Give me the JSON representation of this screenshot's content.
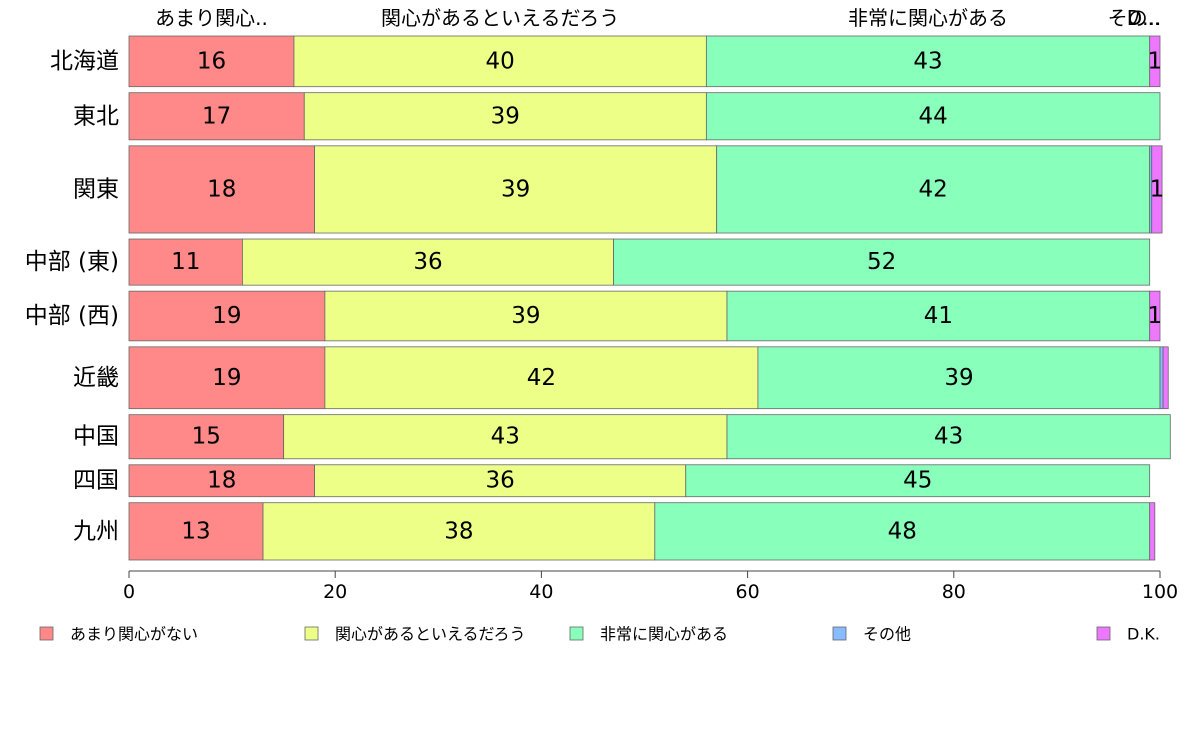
{
  "chart_data": {
    "type": "bar",
    "orientation": "horizontal",
    "stacked": true,
    "categories": [
      "北海道",
      "東北",
      "関東",
      "中部 (東)",
      "中部 (西)",
      "近畿",
      "中国",
      "四国",
      "九州"
    ],
    "bar_weights": [
      1.0,
      0.93,
      1.72,
      0.91,
      0.98,
      1.22,
      0.87,
      0.63,
      1.13
    ],
    "series": [
      {
        "name": "あまり関心がない",
        "color": "#ff8888",
        "values": [
          16,
          17,
          18,
          11,
          19,
          19,
          15,
          18,
          13
        ]
      },
      {
        "name": "関心があるといえるだろう",
        "color": "#eeff88",
        "values": [
          40,
          39,
          39,
          36,
          39,
          42,
          43,
          36,
          38
        ]
      },
      {
        "name": "非常に関心がある",
        "color": "#88ffbb",
        "values": [
          43,
          44,
          42,
          52,
          41,
          39,
          43,
          45,
          48
        ]
      },
      {
        "name": "その他",
        "color": "#88bbff",
        "values": [
          0,
          0,
          0.2,
          0,
          0,
          0.3,
          0,
          0,
          0
        ]
      },
      {
        "name": "D.K.",
        "color": "#ee77ff",
        "values": [
          1,
          0,
          1,
          0,
          1,
          0.5,
          0,
          0,
          0.5
        ]
      }
    ],
    "segment_labels": [
      [
        "16",
        "40",
        "43",
        "",
        "1"
      ],
      [
        "17",
        "39",
        "44",
        "",
        ""
      ],
      [
        "18",
        "39",
        "42",
        "",
        "1"
      ],
      [
        "11",
        "36",
        "52",
        "",
        ""
      ],
      [
        "19",
        "39",
        "41",
        "",
        "1"
      ],
      [
        "19",
        "42",
        "39",
        "",
        ""
      ],
      [
        "15",
        "43",
        "43",
        "",
        ""
      ],
      [
        "18",
        "36",
        "45",
        "",
        ""
      ],
      [
        "13",
        "38",
        "48",
        "",
        ""
      ]
    ],
    "top_labels": [
      "あまり関心..",
      "関心があるといえるだろう",
      "非常に関心がある",
      "その..",
      "D..."
    ],
    "x_ticks": [
      0,
      20,
      40,
      60,
      80,
      100
    ],
    "xlim": [
      0,
      100
    ],
    "legend_position": "bottom"
  }
}
